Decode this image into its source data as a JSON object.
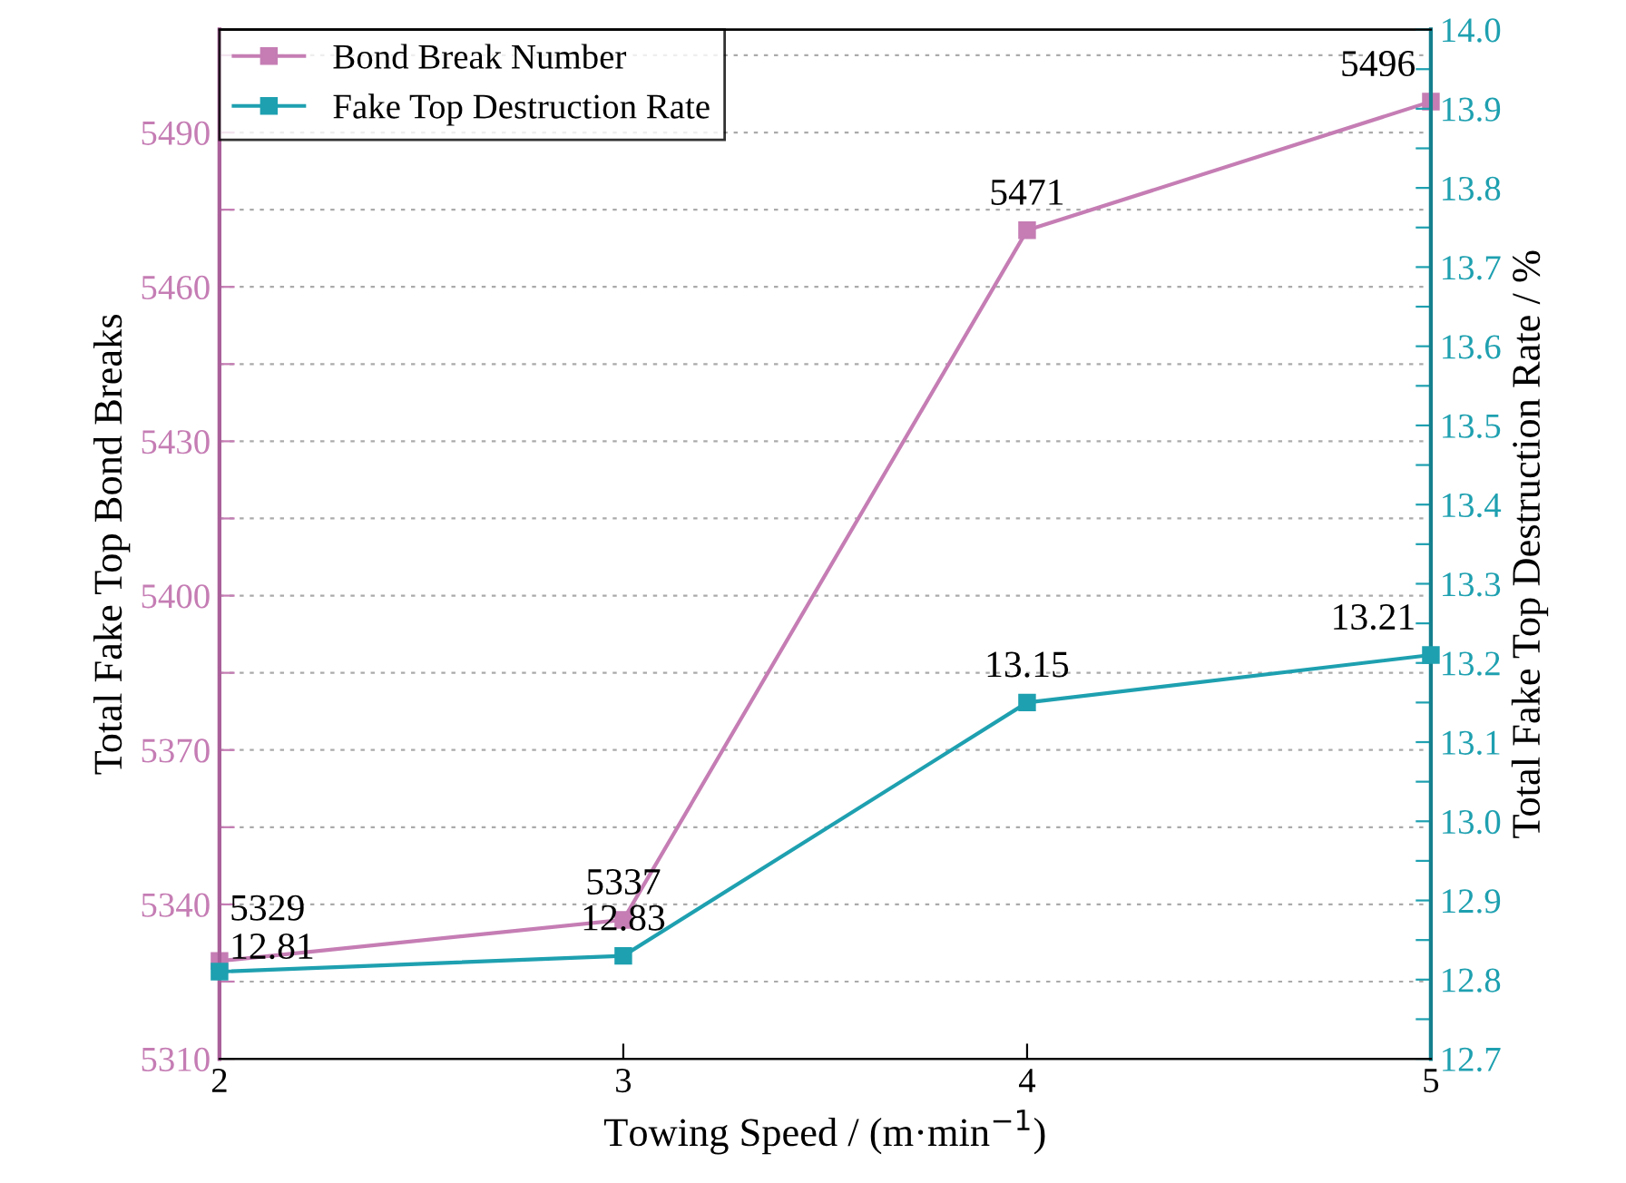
{
  "chart_data": {
    "type": "line",
    "xlabel": "Towing Speed / (m·min$^{−1}$)",
    "ylabel": "Total Fake Top Bond Breaks",
    "y2label": "Total Fake Top Destruction Rate / %",
    "x": [
      2,
      3,
      4,
      5
    ],
    "xlim": [
      2,
      5
    ],
    "xticks": [
      2,
      3,
      4,
      5
    ],
    "ylim": [
      5310,
      5510
    ],
    "yticks": [
      5310,
      {
        "value": 5325,
        "label": null
      },
      5340,
      {
        "value": 5355,
        "label": null
      },
      5370,
      {
        "value": 5385,
        "label": null
      },
      5400,
      {
        "value": 5415,
        "label": null
      },
      5430,
      {
        "value": 5445,
        "label": null
      },
      5460,
      {
        "value": 5475,
        "label": null
      },
      5490,
      {
        "value": 5505,
        "label": null
      }
    ],
    "y2lim": [
      12.7,
      14.0
    ],
    "y2ticks": [
      12.7,
      {
        "value": 12.75,
        "label": null
      },
      12.8,
      {
        "value": 12.85,
        "label": null
      },
      12.9,
      {
        "value": 12.95,
        "label": null
      },
      {
        "value": 13,
        "label": "13.0"
      },
      {
        "value": 13.05,
        "label": null
      },
      13.1,
      {
        "value": 13.15,
        "label": null
      },
      13.2,
      {
        "value": 13.25,
        "label": null
      },
      13.3,
      {
        "value": 13.35,
        "label": null
      },
      13.4,
      {
        "value": 13.45,
        "label": null
      },
      13.5,
      {
        "value": 13.55,
        "label": null
      },
      13.6,
      {
        "value": 13.65,
        "label": null
      },
      13.7,
      {
        "value": 13.75,
        "label": null
      },
      13.8,
      {
        "value": 13.85,
        "label": null
      },
      13.9,
      {
        "value": 13.95,
        "label": null
      },
      {
        "value": 14,
        "label": "14.0"
      }
    ],
    "series": [
      {
        "name": "Bond Break Number",
        "color": "#c57db4",
        "values": [
          5329,
          5337,
          5471,
          5496
        ]
      },
      {
        "name": "Fake Top Destruction Rate",
        "color": "#1ea0b0",
        "values": [
          12.81,
          12.83,
          13.15,
          13.21
        ],
        "axis": "y2"
      }
    ],
    "marker": "square",
    "line_style": "solid",
    "grid": "y",
    "legend": "top left",
    "data_labels": true
  }
}
